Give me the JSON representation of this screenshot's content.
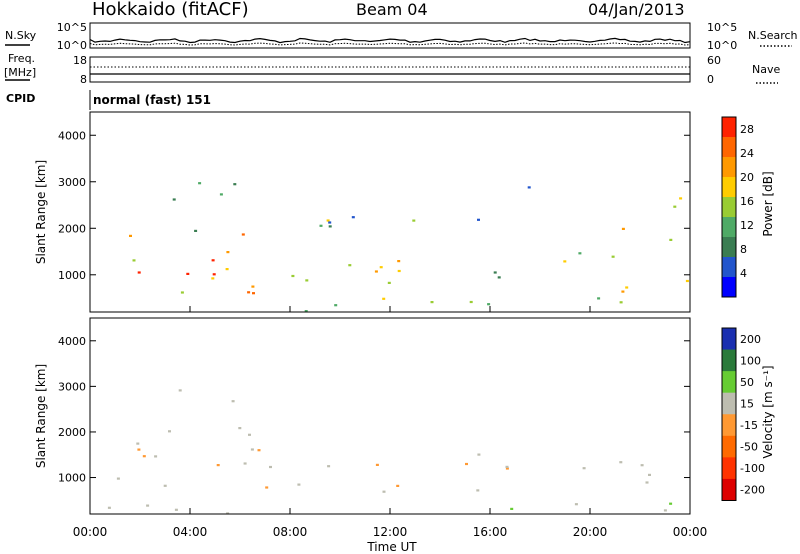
{
  "header": {
    "station": "Hokkaido (fitACF)",
    "beam": "Beam 04",
    "date": "04/Jan/2013"
  },
  "top_panels": {
    "nsky_label": "N.Sky",
    "nsearch_label": "N.Search",
    "noise_ticks": [
      "10^5",
      "10^0"
    ],
    "freq_label": "Freq.",
    "freq_unit": "[MHz]",
    "freq_ticks": [
      "18",
      "8"
    ],
    "nave_label": "Nave",
    "nave_ticks": [
      "60",
      "0"
    ],
    "cpid_label": "CPID",
    "cpid_value": "normal (fast) 151"
  },
  "colors": {
    "power": [
      "#0000ff",
      "#2255cc",
      "#3a7d52",
      "#4faa66",
      "#99cc33",
      "#ffcc00",
      "#ff9900",
      "#ff6600",
      "#ff2200"
    ],
    "velocity": [
      "#1a2fb0",
      "#2a7a3a",
      "#66cc33",
      "#bdbdb0",
      "#ff9933",
      "#ff6a00",
      "#ff3300",
      "#dd0000"
    ]
  },
  "chart_data": [
    {
      "type": "heatmap",
      "panel": "power",
      "ylabel": "Slant Range [km]",
      "yticks": [
        "1000",
        "2000",
        "3000",
        "4000"
      ],
      "ylim": [
        200,
        4500
      ],
      "xlim": [
        0,
        24
      ],
      "colorbar_label": "Power [dB]",
      "colorbar_ticks": [
        "4",
        "8",
        "12",
        "16",
        "20",
        "24",
        "28"
      ],
      "colorbar_range": [
        0,
        30
      ],
      "scatter_bands": [
        {
          "t0": 0.3,
          "t1": 7.0,
          "r0": 600,
          "r1": 1900,
          "value": 20
        },
        {
          "t0": 0.5,
          "t1": 6.5,
          "r0": 850,
          "r1": 1400,
          "value": 28
        },
        {
          "t0": 7.0,
          "t1": 9.5,
          "r0": 700,
          "r1": 2200,
          "value": 16
        },
        {
          "t0": 9.5,
          "t1": 14.5,
          "r0": 700,
          "r1": 1500,
          "value": 16
        },
        {
          "t0": 10.5,
          "t1": 13.5,
          "r0": 850,
          "r1": 1300,
          "value": 24
        },
        {
          "t0": 14.5,
          "t1": 17.0,
          "r0": 750,
          "r1": 1500,
          "value": 12
        },
        {
          "t0": 17.0,
          "t1": 19.5,
          "r0": 900,
          "r1": 1400,
          "value": 14
        },
        {
          "t0": 19.5,
          "t1": 21.0,
          "r0": 800,
          "r1": 1700,
          "value": 10
        },
        {
          "t0": 21.0,
          "t1": 24.0,
          "r0": 650,
          "r1": 1900,
          "value": 22
        },
        {
          "t0": 2.5,
          "t1": 6.5,
          "r0": 1900,
          "r1": 3000,
          "value": 12
        },
        {
          "t0": 9.0,
          "t1": 16.0,
          "r0": 1900,
          "r1": 2500,
          "value": 8
        },
        {
          "t0": 17.5,
          "t1": 19.0,
          "r0": 2900,
          "r1": 3400,
          "value": 6
        },
        {
          "t0": 21.0,
          "t1": 24.0,
          "r0": 1800,
          "r1": 2700,
          "value": 16
        },
        {
          "t0": 0.0,
          "t1": 24.0,
          "r0": 220,
          "r1": 520,
          "value": 12
        }
      ]
    },
    {
      "type": "heatmap",
      "panel": "velocity",
      "ylabel": "Slant Range [km]",
      "yticks": [
        "1000",
        "2000",
        "3000",
        "4000"
      ],
      "ylim": [
        200,
        4500
      ],
      "xlim": [
        0,
        24
      ],
      "colorbar_label": "Velocity [m s⁻¹]",
      "colorbar_ticks": [
        "200",
        "100",
        "50",
        "15",
        "-15",
        "-50",
        "-100",
        "-200"
      ],
      "colorbar_range": [
        -250,
        250
      ],
      "scatter_bands": [
        {
          "t0": 0.3,
          "t1": 7.0,
          "r0": 600,
          "r1": 1900,
          "value": 0
        },
        {
          "t0": 7.0,
          "t1": 14.5,
          "r0": 700,
          "r1": 1500,
          "value": 0
        },
        {
          "t0": 14.5,
          "t1": 24.0,
          "r0": 700,
          "r1": 1600,
          "value": 0
        },
        {
          "t0": 2.5,
          "t1": 6.5,
          "r0": 1900,
          "r1": 3000,
          "value": 20
        },
        {
          "t0": 18.5,
          "t1": 19.5,
          "r0": 600,
          "r1": 900,
          "value": -150
        },
        {
          "t0": 0.0,
          "t1": 24.0,
          "r0": 220,
          "r1": 520,
          "value": 60
        }
      ]
    }
  ],
  "x_axis": {
    "ticks": [
      "00:00",
      "04:00",
      "08:00",
      "12:00",
      "16:00",
      "20:00",
      "00:00"
    ],
    "label": "Time UT"
  }
}
